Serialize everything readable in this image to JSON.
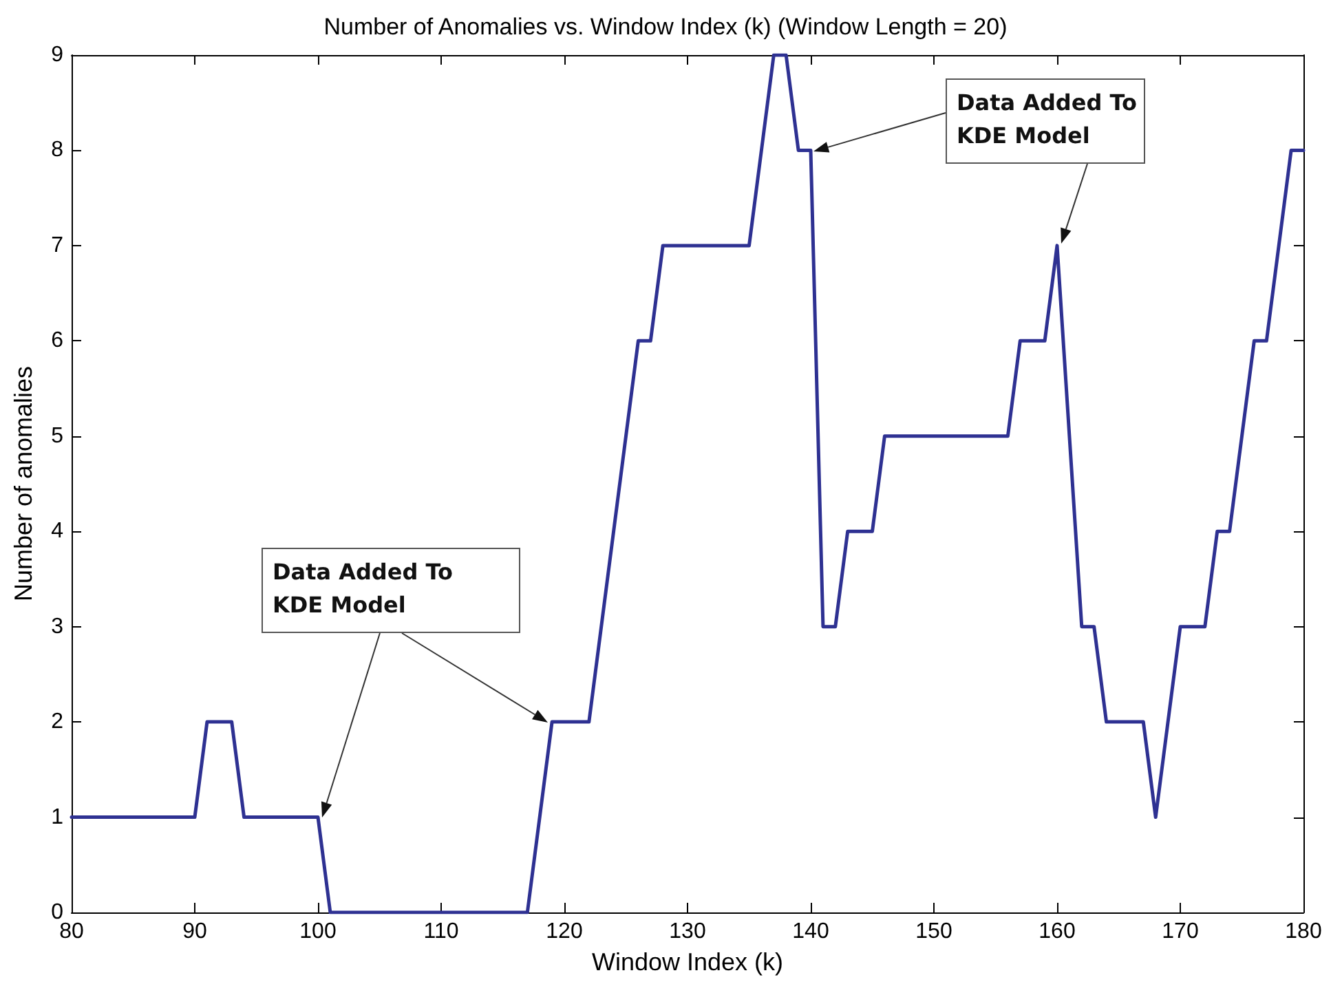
{
  "chart_data": {
    "type": "line",
    "title": "Number of Anomalies vs. Window Index (k) (Window Length = 20)",
    "xlabel": "Window Index (k)",
    "ylabel": "Number of anomalies",
    "x": [
      80,
      90,
      91,
      93,
      94,
      100,
      101,
      117,
      119,
      122,
      126,
      127,
      128,
      135,
      137,
      138,
      139,
      140,
      141,
      142,
      143,
      145,
      146,
      156,
      157,
      159,
      160,
      162,
      163,
      164,
      167,
      168,
      170,
      172,
      173,
      174,
      176,
      177,
      179,
      180
    ],
    "series": [
      {
        "color": "#2e3192",
        "values": [
          1,
          1,
          2,
          2,
          1,
          1,
          0,
          0,
          2,
          2,
          6,
          6,
          7,
          7,
          9,
          9,
          8,
          8,
          3,
          3,
          4,
          4,
          5,
          5,
          6,
          6,
          7,
          3,
          3,
          2,
          2,
          1,
          3,
          3,
          4,
          4,
          6,
          6,
          8,
          8
        ]
      }
    ],
    "xlim": [
      80,
      180
    ],
    "xticks": [
      80,
      90,
      100,
      110,
      120,
      130,
      140,
      150,
      160,
      170,
      180
    ],
    "ylim": [
      0,
      9
    ],
    "yticks": [
      0,
      1,
      2,
      3,
      4,
      5,
      6,
      7,
      8,
      9
    ],
    "grid": false,
    "marker": "none",
    "line_style": "solid",
    "annotations": [
      "Data Added To KDE Model",
      "Data Added To KDE Model"
    ]
  }
}
